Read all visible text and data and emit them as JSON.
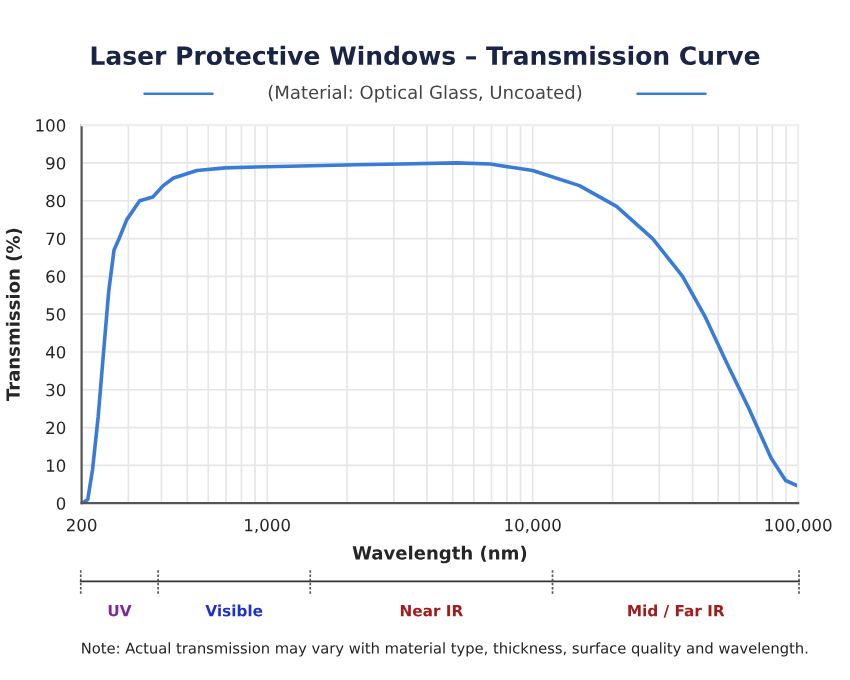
{
  "chart_data": {
    "type": "line",
    "title": "Laser Protective Windows – Transmission Curve",
    "subtitle": "(Material: Optical Glass, Uncoated)",
    "xlabel": "Wavelength (nm)",
    "ylabel": "Transmission (%)",
    "x": [
      201,
      211,
      220,
      231,
      242,
      253,
      265,
      277,
      296,
      331,
      371,
      406,
      444,
      544,
      694,
      1000,
      2170,
      3190,
      5180,
      6920,
      10000,
      15000,
      20700,
      28300,
      36700,
      44500,
      53900,
      65300,
      79000,
      89700,
      100000
    ],
    "series": [
      {
        "color": "#3a7bd5",
        "values": [
          0,
          1,
          9,
          23,
          40,
          56,
          67,
          70,
          75,
          80,
          81,
          84,
          86,
          88,
          88.7,
          89,
          89.5,
          89.7,
          90,
          89.7,
          88,
          84,
          78.5,
          70,
          60,
          49.5,
          37,
          25,
          12,
          6,
          4.5
        ]
      }
    ],
    "log": "x",
    "xlim": [
      200,
      100000
    ],
    "xticks": [
      {
        "value": 200,
        "label": "200"
      },
      {
        "value": 1000,
        "label": "1,000"
      },
      {
        "value": 10000,
        "label": "10,000"
      },
      {
        "value": 100000,
        "label": "100,000"
      }
    ],
    "ylim": [
      0,
      100
    ],
    "yticks": [
      0,
      10,
      20,
      30,
      40,
      50,
      60,
      70,
      80,
      90,
      100
    ],
    "grid": true,
    "marker": "none",
    "line_style": "solid",
    "annotations": [
      "UV",
      "Visible",
      "Near IR",
      "Mid / Far IR",
      "Note: Actual transmission may vary with material type, thickness, surface quality and wavelength."
    ]
  }
}
